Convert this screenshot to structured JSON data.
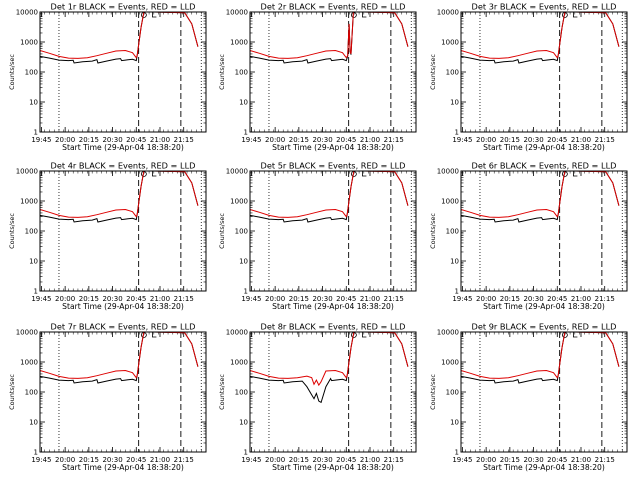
{
  "chart_data": {
    "type": "line",
    "layout": "3x3 grid",
    "xlabel": "Start Time (29-Apr-04 18:38:20)",
    "ylabel": "Counts/sec",
    "yscale": "log",
    "ylim": [
      1,
      10000
    ],
    "yticks": [
      "1",
      "10",
      "100",
      "1000",
      "10000"
    ],
    "xlim_minutes": [
      -2,
      33
    ],
    "xtick_labels": [
      "19:45",
      "20:00",
      "20:15",
      "20:30",
      "20:45",
      "21:00",
      "21:15"
    ],
    "xtick_minutes": [
      -1.7,
      3.3,
      8.3,
      13.3,
      18.3,
      23.3,
      28.3
    ],
    "markers": {
      "dotted_minute": [
        2.0,
        32.0
      ],
      "dashed_minute": [
        18.8,
        27.7
      ],
      "label_o_minute": 19.9,
      "label_l_minute": 21.7
    },
    "series_colors": {
      "events": "#000000",
      "lld": "#dd0000"
    },
    "legend": "in title",
    "panels": [
      {
        "title": "Det 1r BLACK = Events, RED = LLD",
        "variant": "std"
      },
      {
        "title": "Det 2r BLACK = Events, RED = LLD",
        "variant": "spike"
      },
      {
        "title": "Det 3r BLACK = Events, RED = LLD",
        "variant": "std"
      },
      {
        "title": "Det 4r BLACK = Events, RED = LLD",
        "variant": "std"
      },
      {
        "title": "Det 5r BLACK = Events, RED = LLD",
        "variant": "std"
      },
      {
        "title": "Det 6r BLACK = Events, RED = LLD",
        "variant": "std"
      },
      {
        "title": "Det 7r BLACK = Events, RED = LLD",
        "variant": "std"
      },
      {
        "title": "Det 8r BLACK = Events, RED = LLD",
        "variant": "dip"
      },
      {
        "title": "Det 9r BLACK = Events, RED = LLD",
        "variant": "std"
      }
    ],
    "series_templates": {
      "std": {
        "lld": [
          [
            -2,
            520
          ],
          [
            0,
            420
          ],
          [
            2,
            330
          ],
          [
            4,
            290
          ],
          [
            6,
            285
          ],
          [
            8,
            300
          ],
          [
            10,
            350
          ],
          [
            12,
            420
          ],
          [
            14,
            500
          ],
          [
            16,
            520
          ],
          [
            17.5,
            440
          ],
          [
            18.3,
            300
          ],
          [
            18.5,
            360
          ],
          [
            19.3,
            3000
          ],
          [
            19.9,
            10000
          ],
          [
            21,
            10000
          ],
          [
            22,
            10000
          ],
          [
            28.5,
            9500
          ],
          [
            30,
            4000
          ],
          [
            31.3,
            700
          ]
        ],
        "events": [
          [
            -2,
            330
          ],
          [
            0,
            290
          ],
          [
            2,
            250
          ],
          [
            4,
            240
          ],
          [
            5,
            245
          ],
          [
            5.2,
            200
          ],
          [
            7,
            220
          ],
          [
            9,
            230
          ],
          [
            10,
            260
          ],
          [
            10.2,
            200
          ],
          [
            12,
            230
          ],
          [
            14,
            270
          ],
          [
            15,
            280
          ],
          [
            15.2,
            240
          ],
          [
            16,
            250
          ],
          [
            17.5,
            265
          ],
          [
            18.3,
            240
          ],
          [
            18.5,
            360
          ],
          [
            19.3,
            3000
          ],
          [
            19.9,
            10000
          ],
          [
            21,
            10000
          ],
          [
            22,
            10000
          ],
          [
            28.5,
            9500
          ],
          [
            30,
            4000
          ],
          [
            31.3,
            700
          ]
        ]
      },
      "spike": {
        "lld": [
          [
            -2,
            520
          ],
          [
            0,
            420
          ],
          [
            2,
            330
          ],
          [
            4,
            290
          ],
          [
            6,
            285
          ],
          [
            8,
            300
          ],
          [
            10,
            350
          ],
          [
            12,
            420
          ],
          [
            14,
            500
          ],
          [
            16,
            520
          ],
          [
            17.5,
            440
          ],
          [
            18.3,
            300
          ],
          [
            18.6,
            350
          ],
          [
            18.9,
            4000
          ],
          [
            19.1,
            500
          ],
          [
            19.3,
            400
          ],
          [
            19.8,
            10000
          ],
          [
            21,
            10000
          ],
          [
            22,
            10000
          ],
          [
            28.5,
            9500
          ],
          [
            30,
            4000
          ],
          [
            31.3,
            700
          ]
        ],
        "events": [
          [
            -2,
            330
          ],
          [
            0,
            290
          ],
          [
            2,
            250
          ],
          [
            4,
            240
          ],
          [
            5,
            245
          ],
          [
            5.2,
            200
          ],
          [
            7,
            220
          ],
          [
            9,
            230
          ],
          [
            10,
            260
          ],
          [
            10.2,
            200
          ],
          [
            12,
            230
          ],
          [
            14,
            270
          ],
          [
            15,
            280
          ],
          [
            15.2,
            240
          ],
          [
            16,
            250
          ],
          [
            17.5,
            265
          ],
          [
            18.3,
            240
          ],
          [
            18.6,
            340
          ],
          [
            18.9,
            4000
          ],
          [
            19.1,
            480
          ],
          [
            19.3,
            380
          ],
          [
            19.8,
            10000
          ],
          [
            21,
            10000
          ],
          [
            22,
            10000
          ],
          [
            28.5,
            9500
          ],
          [
            30,
            4000
          ],
          [
            31.3,
            700
          ]
        ]
      },
      "dip": {
        "lld": [
          [
            -2,
            520
          ],
          [
            0,
            420
          ],
          [
            2,
            330
          ],
          [
            4,
            290
          ],
          [
            6,
            285
          ],
          [
            8,
            300
          ],
          [
            10,
            340
          ],
          [
            11,
            300
          ],
          [
            11.5,
            180
          ],
          [
            12,
            250
          ],
          [
            12.5,
            170
          ],
          [
            13,
            220
          ],
          [
            14,
            500
          ],
          [
            16,
            520
          ],
          [
            17.5,
            440
          ],
          [
            18.3,
            300
          ],
          [
            18.5,
            360
          ],
          [
            19.3,
            3000
          ],
          [
            19.9,
            10000
          ],
          [
            21,
            10000
          ],
          [
            22,
            10000
          ],
          [
            28.5,
            9500
          ],
          [
            30,
            4000
          ],
          [
            31.3,
            700
          ]
        ],
        "events": [
          [
            -2,
            330
          ],
          [
            0,
            290
          ],
          [
            2,
            250
          ],
          [
            4,
            240
          ],
          [
            5,
            245
          ],
          [
            5.2,
            200
          ],
          [
            7,
            220
          ],
          [
            9,
            230
          ],
          [
            10,
            150
          ],
          [
            11,
            80
          ],
          [
            11.5,
            60
          ],
          [
            12,
            90
          ],
          [
            12.5,
            50
          ],
          [
            13,
            45
          ],
          [
            14,
            150
          ],
          [
            15,
            280
          ],
          [
            15.2,
            240
          ],
          [
            16,
            250
          ],
          [
            17.5,
            265
          ],
          [
            18.3,
            240
          ],
          [
            18.5,
            360
          ],
          [
            19.3,
            3000
          ],
          [
            19.9,
            10000
          ],
          [
            21,
            10000
          ],
          [
            22,
            10000
          ],
          [
            28.5,
            9500
          ],
          [
            30,
            4000
          ],
          [
            31.3,
            700
          ]
        ]
      }
    }
  }
}
